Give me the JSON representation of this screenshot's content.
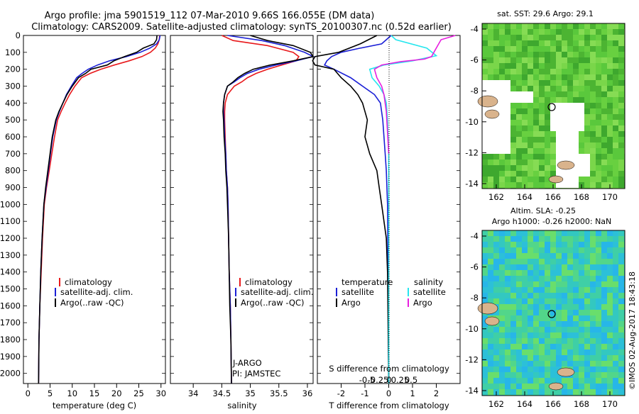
{
  "header": {
    "line1": "Argo profile: jma 5901519_112 07-Mar-2010 9.66S 166.055E (DM data)",
    "line2": "Climatology: CARS2009. Satellite-adjusted climatology: synTS_20100307.nc (0.52d earlier)"
  },
  "colors": {
    "climatology": "#e8191c",
    "satellite": "#1a1fd6",
    "argo": "#000000",
    "sat_salinity": "#25e6ee",
    "argo_salinity": "#e81ee0"
  },
  "depth_axis": {
    "ticks": [
      "0",
      "100",
      "200",
      "300",
      "400",
      "500",
      "600",
      "700",
      "800",
      "900",
      "1000",
      "1100",
      "1200",
      "1300",
      "1400",
      "1500",
      "1600",
      "1700",
      "1800",
      "1900",
      "2000"
    ]
  },
  "temperature_panel": {
    "xlabel": "temperature (deg C)",
    "xticks": [
      "0",
      "5",
      "10",
      "15",
      "20",
      "25",
      "30"
    ],
    "legend": [
      "climatology",
      "satellite-adj. clim.",
      "Argo(..raw -QC)"
    ]
  },
  "salinity_panel": {
    "xlabel": "salinity",
    "xticks": [
      "34",
      "34.5",
      "35",
      "35.5",
      "36"
    ],
    "legend": [
      "climatology",
      "satellite-adj. clim.",
      "Argo(..raw -QC)"
    ],
    "note1": "J-ARGO",
    "note2": "PI: JAMSTEC"
  },
  "difference_panel": {
    "legend_temp_title": "temperature",
    "legend_sal_title": "salinity",
    "legend_temp": [
      "satellite",
      "Argo"
    ],
    "legend_sal": [
      "satellite",
      "Argo"
    ],
    "s_label": "S difference from climatology",
    "s_ticks": [
      "-0.5",
      "-0.25",
      "0",
      "0.25",
      "0.5"
    ],
    "t_label": "T difference from climatology",
    "t_ticks": [
      "-2",
      "-1",
      "0",
      "1",
      "2"
    ]
  },
  "sst_map": {
    "title": "sat. SST: 29.6  Argo: 29.1",
    "lon_ticks": [
      "162",
      "164",
      "166",
      "168",
      "170"
    ],
    "lat_ticks": [
      "-4",
      "-6",
      "-8",
      "-10",
      "-12",
      "-14"
    ]
  },
  "sla_map": {
    "title1": "Altim. SLA: -0.25",
    "title2": "Argo h1000: -0.26  h2000: NaN",
    "lon_ticks": [
      "162",
      "164",
      "166",
      "168",
      "170"
    ],
    "lat_ticks": [
      "-4",
      "-6",
      "-8",
      "-10",
      "-12",
      "-14"
    ]
  },
  "credit": "©IMOS 02-Aug-2017 18:43:18",
  "chart_data": [
    {
      "type": "line",
      "title": "temperature profile",
      "xlabel": "temperature (deg C)",
      "ylabel": "depth",
      "xlim": [
        -1,
        31
      ],
      "ylim": [
        2060,
        0
      ],
      "series": [
        {
          "name": "climatology",
          "x": [
            29.7,
            29.6,
            29.3,
            28.7,
            27.6,
            25.7,
            22.8,
            19.5,
            16.4,
            14.0,
            12.1,
            10.6,
            9.4,
            8.4,
            7.5,
            6.7,
            6.0,
            5.4,
            4.8,
            4.2,
            3.7,
            3.3,
            3.0,
            2.7,
            2.5,
            2.4
          ],
          "depth": [
            0,
            25,
            50,
            75,
            100,
            125,
            150,
            175,
            200,
            225,
            250,
            300,
            350,
            400,
            450,
            500,
            600,
            700,
            800,
            900,
            1000,
            1200,
            1400,
            1600,
            1800,
            2060
          ]
        },
        {
          "name": "satellite-adj. clim.",
          "x": [
            29.8,
            29.6,
            29.0,
            27.5,
            25.3,
            22.2,
            18.4,
            15.7,
            13.6,
            12.2,
            11.0,
            9.8,
            8.7,
            7.9,
            7.1,
            6.4,
            5.6,
            5.1,
            4.6,
            4.1,
            3.6,
            3.2,
            2.9,
            2.7,
            2.5,
            2.4
          ],
          "depth": [
            0,
            25,
            50,
            75,
            100,
            125,
            150,
            175,
            200,
            225,
            250,
            300,
            350,
            400,
            450,
            500,
            600,
            700,
            800,
            900,
            1000,
            1200,
            1400,
            1600,
            1800,
            2060
          ]
        },
        {
          "name": "Argo(..raw -QC)",
          "x": [
            29.1,
            29.0,
            28.4,
            26.0,
            24.5,
            21.8,
            19.4,
            17.9,
            14.2,
            13.0,
            11.4,
            10.0,
            8.8,
            7.9,
            7.0,
            6.3,
            5.5,
            5.0,
            4.5,
            4.0,
            3.6,
            3.2,
            2.9,
            2.7,
            2.5,
            2.4
          ],
          "depth": [
            0,
            25,
            50,
            75,
            100,
            125,
            150,
            175,
            200,
            225,
            250,
            300,
            350,
            400,
            450,
            500,
            600,
            700,
            800,
            900,
            1000,
            1200,
            1400,
            1600,
            1800,
            2060
          ]
        }
      ]
    },
    {
      "type": "line",
      "title": "salinity profile",
      "xlabel": "salinity",
      "ylabel": "depth",
      "xlim": [
        33.6,
        36.1
      ],
      "ylim": [
        2060,
        0
      ],
      "series": [
        {
          "name": "climatology",
          "x": [
            34.5,
            34.7,
            35.3,
            35.75,
            35.85,
            35.8,
            35.55,
            35.3,
            35.1,
            34.95,
            34.85,
            34.72,
            34.6,
            34.56,
            34.55,
            34.55,
            34.56,
            34.57,
            34.58,
            34.6,
            34.61,
            34.62,
            34.63,
            34.65,
            34.66,
            34.67
          ],
          "depth": [
            0,
            30,
            60,
            100,
            125,
            150,
            175,
            200,
            225,
            250,
            275,
            300,
            350,
            400,
            450,
            500,
            600,
            700,
            800,
            900,
            1000,
            1200,
            1400,
            1600,
            1800,
            2060
          ]
        },
        {
          "name": "satellite-adj. clim.",
          "x": [
            34.6,
            35.2,
            35.6,
            35.95,
            36.1,
            35.8,
            35.45,
            35.15,
            34.95,
            34.82,
            34.72,
            34.6,
            34.55,
            34.53,
            34.53,
            34.54,
            34.55,
            34.57,
            34.58,
            34.6,
            34.61,
            34.62,
            34.63,
            34.65,
            34.66,
            34.67
          ],
          "depth": [
            0,
            30,
            60,
            100,
            125,
            150,
            175,
            200,
            225,
            250,
            275,
            300,
            350,
            400,
            450,
            500,
            600,
            700,
            800,
            900,
            1000,
            1200,
            1400,
            1600,
            1800,
            2060
          ]
        },
        {
          "name": "Argo(..raw -QC)",
          "x": [
            35.0,
            35.3,
            35.75,
            36.05,
            36.1,
            35.75,
            35.35,
            35.05,
            34.9,
            34.78,
            34.7,
            34.6,
            34.55,
            34.53,
            34.52,
            34.53,
            34.54,
            34.56,
            34.57,
            34.59,
            34.6,
            34.62,
            34.63,
            34.64,
            34.66,
            34.67
          ],
          "depth": [
            0,
            30,
            60,
            100,
            125,
            150,
            175,
            200,
            225,
            250,
            275,
            300,
            350,
            400,
            450,
            500,
            600,
            700,
            800,
            900,
            1000,
            1200,
            1400,
            1600,
            1800,
            2060
          ]
        }
      ]
    },
    {
      "type": "line",
      "title": "difference from climatology",
      "xlabel": "T difference from climatology",
      "x2label": "S difference from climatology",
      "ylabel": "depth",
      "xlim": [
        -3,
        3
      ],
      "ylim": [
        2060,
        0
      ],
      "series": [
        {
          "name": "temperature satellite",
          "x": [
            0.1,
            -0.3,
            -1.2,
            -2.0,
            -2.4,
            -2.6,
            -2.7,
            -2.3,
            -1.6,
            -1.1,
            -0.6,
            -0.35,
            -0.25,
            -0.2,
            -0.15,
            -0.1,
            -0.05,
            0.0
          ],
          "depth": [
            0,
            50,
            75,
            100,
            125,
            150,
            175,
            200,
            250,
            300,
            350,
            400,
            500,
            600,
            700,
            800,
            1000,
            2060
          ]
        },
        {
          "name": "temperature Argo",
          "x": [
            -0.5,
            -1.2,
            -2.1,
            -3.1,
            -3.2,
            -3.1,
            -2.3,
            -2.0,
            -1.6,
            -1.3,
            -1.1,
            -0.9,
            -1.0,
            -0.8,
            -0.5,
            -0.4,
            -0.3,
            -0.1,
            -0.05,
            0.0
          ],
          "depth": [
            0,
            50,
            100,
            125,
            150,
            175,
            200,
            250,
            300,
            350,
            400,
            500,
            600,
            700,
            800,
            900,
            1000,
            1200,
            1400,
            2060
          ]
        },
        {
          "name": "salinity satellite",
          "x": [
            0.1,
            0.3,
            1.6,
            2.0,
            1.0,
            -0.2,
            -0.8,
            -0.7,
            -0.4,
            -0.2,
            -0.1,
            -0.05,
            0.0,
            0.0
          ],
          "depth": [
            0,
            25,
            75,
            120,
            150,
            175,
            200,
            250,
            300,
            350,
            400,
            500,
            700,
            2060
          ]
        },
        {
          "name": "salinity Argo",
          "x": [
            2.8,
            2.2,
            1.9,
            1.8,
            1.5,
            0.5,
            -0.3,
            -0.6,
            -0.5,
            -0.3,
            -0.2,
            -0.1,
            0.0
          ],
          "depth": [
            0,
            25,
            100,
            125,
            140,
            155,
            175,
            200,
            250,
            300,
            350,
            450,
            700
          ]
        }
      ]
    }
  ]
}
